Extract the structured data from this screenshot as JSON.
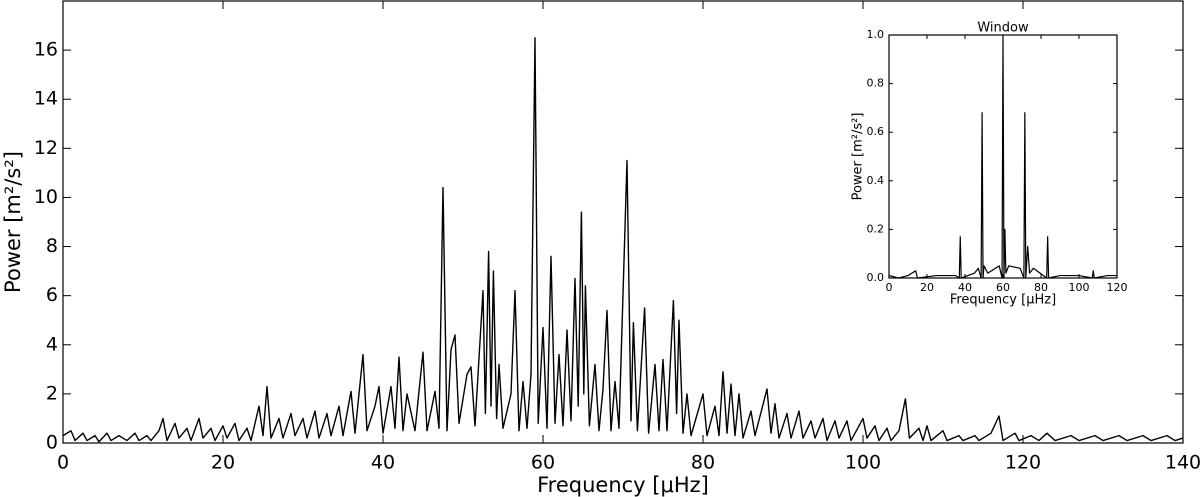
{
  "chart_data": [
    {
      "type": "line",
      "xlabel": "Frequency [μHz]",
      "ylabel": "Power [m²/s²]",
      "color": "#000000",
      "x": [
        0,
        1,
        1.5,
        2.5,
        3,
        4,
        4.5,
        5.5,
        6,
        7,
        8,
        9,
        9.5,
        10.5,
        11,
        12,
        12.5,
        13,
        14,
        14.5,
        15.5,
        16,
        17,
        17.5,
        18.5,
        19,
        20,
        20.5,
        21.5,
        22,
        23,
        23.5,
        24.5,
        25,
        25.5,
        26,
        27,
        27.5,
        28.5,
        29,
        30,
        30.5,
        31.5,
        32,
        33,
        33.5,
        34.5,
        35,
        36,
        36.5,
        37.5,
        38,
        39,
        39.5,
        40,
        41,
        41.5,
        42,
        42.5,
        43,
        44,
        45,
        45.5,
        46.5,
        47,
        47.5,
        48,
        48.5,
        49,
        49.5,
        50.5,
        51,
        51.5,
        52.5,
        52.8,
        53.2,
        53.5,
        53.8,
        54.2,
        54.5,
        55,
        56,
        56.5,
        57,
        57.5,
        58,
        58.5,
        59,
        59.4,
        60,
        60.5,
        61,
        61.5,
        62,
        62.5,
        63,
        63.5,
        64,
        64.4,
        64.8,
        65.1,
        65.3,
        65.8,
        66.5,
        67,
        67.5,
        68,
        68.5,
        69,
        69.5,
        70.5,
        71,
        71.3,
        71.8,
        72.7,
        73.2,
        74,
        74.5,
        75,
        75.5,
        76.3,
        76.7,
        77,
        77.5,
        78,
        78.5,
        80,
        80.5,
        81.5,
        82,
        82.5,
        83,
        83.5,
        84,
        84.5,
        85,
        86,
        86.5,
        88,
        88.5,
        89,
        89.5,
        90.5,
        91,
        92,
        92.5,
        93.5,
        94,
        95,
        95.5,
        96.5,
        97,
        98,
        98.5,
        100,
        100.5,
        101.5,
        102,
        103,
        103.5,
        104.5,
        105.3,
        105.8,
        107,
        107.5,
        108,
        108.5,
        110,
        110.5,
        112,
        112.5,
        114,
        114.5,
        116,
        117,
        117.5,
        119,
        119.5,
        121,
        122,
        123,
        124,
        126,
        127,
        129,
        130,
        132,
        133,
        135,
        136,
        138,
        139,
        140
      ],
      "values": [
        0.3,
        0.5,
        0.1,
        0.4,
        0.1,
        0.3,
        0.05,
        0.4,
        0.1,
        0.3,
        0.1,
        0.4,
        0.1,
        0.3,
        0.1,
        0.5,
        1.0,
        0.1,
        0.8,
        0.2,
        0.6,
        0.1,
        1.0,
        0.2,
        0.6,
        0.1,
        0.7,
        0.2,
        0.8,
        0.1,
        0.6,
        0.1,
        1.5,
        0.3,
        2.3,
        0.2,
        1.0,
        0.2,
        1.2,
        0.3,
        1.0,
        0.2,
        1.3,
        0.2,
        1.2,
        0.3,
        1.5,
        0.3,
        2.1,
        0.4,
        3.6,
        0.5,
        1.5,
        2.3,
        0.4,
        2.3,
        0.6,
        3.5,
        0.5,
        2.0,
        0.5,
        3.7,
        0.5,
        2.1,
        0.6,
        10.4,
        0.5,
        3.8,
        4.4,
        0.8,
        2.8,
        3.1,
        0.7,
        6.2,
        1.2,
        7.8,
        1.5,
        7.0,
        1.0,
        3.2,
        0.6,
        2.0,
        6.2,
        0.5,
        2.5,
        0.6,
        2.8,
        16.5,
        0.8,
        4.7,
        0.6,
        7.6,
        0.8,
        3.6,
        0.7,
        4.6,
        0.9,
        6.7,
        1.5,
        9.4,
        2.0,
        6.4,
        0.7,
        3.2,
        0.5,
        2.2,
        5.4,
        0.5,
        2.5,
        0.6,
        11.5,
        0.9,
        4.9,
        0.5,
        5.5,
        0.4,
        3.2,
        0.5,
        3.4,
        0.5,
        5.8,
        1.2,
        5.0,
        0.4,
        2.0,
        0.3,
        2.0,
        0.3,
        1.5,
        0.3,
        2.9,
        0.4,
        2.4,
        0.3,
        2.0,
        0.2,
        1.3,
        0.3,
        2.2,
        0.4,
        1.6,
        0.2,
        1.2,
        0.2,
        1.3,
        0.2,
        0.9,
        0.2,
        1.0,
        0.1,
        0.9,
        0.2,
        0.9,
        0.1,
        1.0,
        0.2,
        0.7,
        0.1,
        0.6,
        0.1,
        0.5,
        1.8,
        0.2,
        0.6,
        0.1,
        0.7,
        0.1,
        0.5,
        0.1,
        0.3,
        0.1,
        0.3,
        0.1,
        0.4,
        1.1,
        0.1,
        0.4,
        0.1,
        0.3,
        0.1,
        0.4,
        0.1,
        0.3,
        0.1,
        0.3,
        0.1,
        0.3,
        0.1,
        0.3,
        0.1,
        0.3,
        0.1,
        0.2
      ],
      "xlim": [
        0,
        140
      ],
      "ylim": [
        0,
        18
      ],
      "xticks": [
        0,
        20,
        40,
        60,
        80,
        100,
        120,
        140
      ],
      "yticks": [
        0,
        2,
        4,
        6,
        8,
        10,
        12,
        14,
        16
      ]
    },
    {
      "type": "line",
      "title": "Window",
      "xlabel": "Frequency [μHz]",
      "ylabel": "Power [m²/s²]",
      "color": "#000000",
      "x": [
        0,
        5,
        10,
        14,
        15,
        25,
        35,
        37,
        37.5,
        38,
        45,
        47,
        48.5,
        49,
        49.5,
        50,
        52,
        58,
        59.5,
        60,
        60.5,
        61,
        61.5,
        63,
        69,
        71,
        71.5,
        72,
        73,
        74,
        76,
        83,
        83.5,
        84,
        90,
        100,
        107,
        107.5,
        108,
        115,
        120
      ],
      "values": [
        0.01,
        0,
        0.01,
        0.03,
        0,
        0.01,
        0.01,
        0,
        0.17,
        0,
        0.02,
        0.04,
        0,
        0.68,
        0,
        0.05,
        0.02,
        0.05,
        0,
        1.0,
        0,
        0.2,
        0.02,
        0.05,
        0.04,
        0,
        0.68,
        0,
        0.13,
        0.02,
        0.04,
        0,
        0.17,
        0,
        0.01,
        0.01,
        0,
        0.03,
        0,
        0.01,
        0.01
      ],
      "xlim": [
        0,
        120
      ],
      "ylim": [
        0,
        1
      ],
      "xticks": [
        0,
        20,
        40,
        60,
        80,
        100,
        120
      ],
      "yticks": [
        {
          "value": 0,
          "label": "0.0"
        },
        0.2,
        0.4,
        0.6,
        0.8,
        {
          "value": 1,
          "label": "1.0"
        }
      ]
    }
  ]
}
